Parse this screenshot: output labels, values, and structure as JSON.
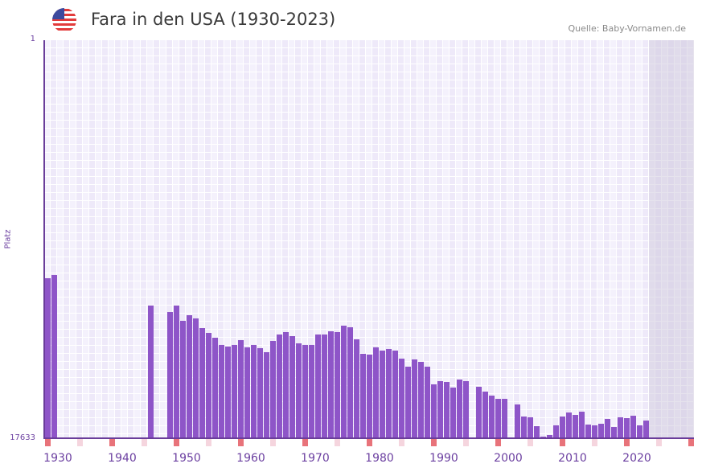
{
  "header": {
    "flag_icon": "usa-flag-icon",
    "title": "Fara in den USA (1930-2023)",
    "source": "Quelle: Baby-Vornamen.de"
  },
  "colors": {
    "bar": "#8e55c8",
    "axis": "#6a3d9a",
    "decade_marker": "#e8737a",
    "half_decade_marker": "#f5d5de"
  },
  "chart_data": {
    "type": "bar",
    "title": "Fara in den USA (1930-2023)",
    "xlabel": "",
    "ylabel": "Platz",
    "y_ticks": [
      "1",
      "17633"
    ],
    "ylim": [
      1,
      17633
    ],
    "y_inverted": true,
    "x_range": [
      1930,
      2030
    ],
    "x_ticks": [
      1930,
      1940,
      1950,
      1960,
      1970,
      1980,
      1990,
      2000,
      2010,
      2020
    ],
    "future_from": 2024,
    "grid": true,
    "data": [
      [
        1930,
        10545
      ],
      [
        1931,
        10402
      ],
      [
        1946,
        11755
      ],
      [
        1949,
        12041
      ],
      [
        1950,
        11755
      ],
      [
        1951,
        12432
      ],
      [
        1952,
        12183
      ],
      [
        1953,
        12325
      ],
      [
        1954,
        12753
      ],
      [
        1955,
        12967
      ],
      [
        1956,
        13180
      ],
      [
        1957,
        13500
      ],
      [
        1958,
        13571
      ],
      [
        1959,
        13500
      ],
      [
        1960,
        13287
      ],
      [
        1961,
        13607
      ],
      [
        1962,
        13500
      ],
      [
        1963,
        13642
      ],
      [
        1964,
        13821
      ],
      [
        1965,
        13323
      ],
      [
        1966,
        13038
      ],
      [
        1967,
        12931
      ],
      [
        1968,
        13109
      ],
      [
        1969,
        13430
      ],
      [
        1970,
        13500
      ],
      [
        1971,
        13500
      ],
      [
        1972,
        13038
      ],
      [
        1973,
        13038
      ],
      [
        1974,
        12896
      ],
      [
        1975,
        12931
      ],
      [
        1976,
        12646
      ],
      [
        1977,
        12717
      ],
      [
        1978,
        13252
      ],
      [
        1979,
        13893
      ],
      [
        1980,
        13928
      ],
      [
        1981,
        13607
      ],
      [
        1982,
        13750
      ],
      [
        1983,
        13679
      ],
      [
        1984,
        13750
      ],
      [
        1985,
        14107
      ],
      [
        1986,
        14463
      ],
      [
        1987,
        14142
      ],
      [
        1988,
        14249
      ],
      [
        1989,
        14463
      ],
      [
        1990,
        15246
      ],
      [
        1991,
        15104
      ],
      [
        1992,
        15140
      ],
      [
        1993,
        15389
      ],
      [
        1994,
        15033
      ],
      [
        1995,
        15104
      ],
      [
        1997,
        15353
      ],
      [
        1998,
        15567
      ],
      [
        1999,
        15745
      ],
      [
        2000,
        15888
      ],
      [
        2001,
        15888
      ],
      [
        2003,
        16137
      ],
      [
        2004,
        16671
      ],
      [
        2005,
        16707
      ],
      [
        2006,
        17099
      ],
      [
        2007,
        17562
      ],
      [
        2008,
        17490
      ],
      [
        2009,
        17063
      ],
      [
        2010,
        16671
      ],
      [
        2011,
        16493
      ],
      [
        2012,
        16600
      ],
      [
        2013,
        16457
      ],
      [
        2014,
        17028
      ],
      [
        2015,
        17063
      ],
      [
        2016,
        16992
      ],
      [
        2017,
        16778
      ],
      [
        2018,
        17135
      ],
      [
        2019,
        16707
      ],
      [
        2020,
        16742
      ],
      [
        2021,
        16636
      ],
      [
        2022,
        17063
      ],
      [
        2023,
        16850
      ]
    ]
  }
}
